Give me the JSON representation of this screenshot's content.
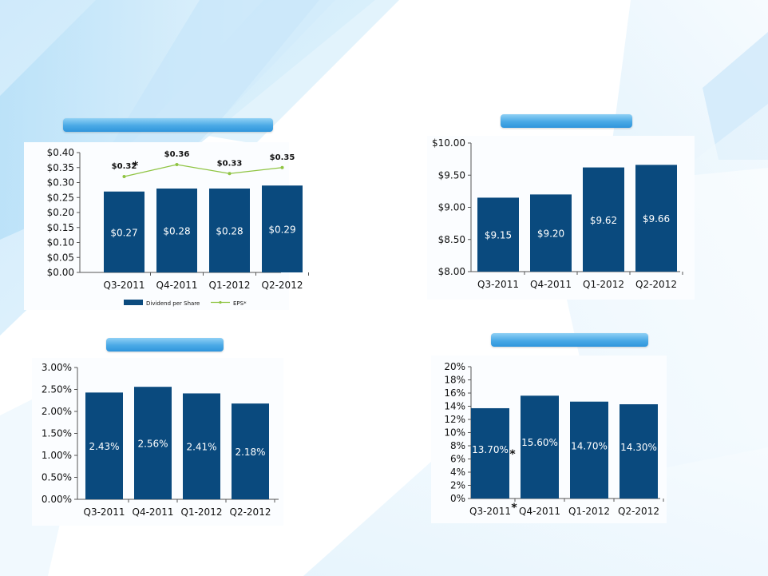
{
  "panels": [
    {
      "title": ""
    },
    {
      "title": ""
    },
    {
      "title": ""
    },
    {
      "title": ""
    }
  ],
  "chart_data": [
    {
      "type": "bar",
      "categories": [
        "Q3-2011",
        "Q4-2011",
        "Q1-2012",
        "Q2-2012"
      ],
      "ylim": [
        0,
        0.4
      ],
      "yticks": [
        "$0.00",
        "$0.05",
        "$0.10",
        "$0.15",
        "$0.20",
        "$0.25",
        "$0.30",
        "$0.35",
        "$0.40"
      ],
      "series": [
        {
          "name": "Dividend per Share",
          "kind": "bar",
          "color": "#0a4a7e",
          "values": [
            0.27,
            0.28,
            0.28,
            0.29
          ],
          "labels": [
            "$0.27",
            "$0.28",
            "$0.28",
            "$0.29"
          ]
        },
        {
          "name": "EPS*",
          "kind": "line",
          "color": "#8fc442",
          "values": [
            0.32,
            0.36,
            0.33,
            0.35
          ],
          "labels": [
            "$0.32",
            "$0.36",
            "$0.33",
            "$0.35"
          ]
        }
      ],
      "annotations": [
        {
          "text": "*",
          "near": "EPS Q3-2011 label"
        }
      ],
      "legend": "bottom",
      "grid": false
    },
    {
      "type": "bar",
      "categories": [
        "Q3-2011",
        "Q4-2011",
        "Q1-2012",
        "Q2-2012"
      ],
      "ylim": [
        8,
        10
      ],
      "yticks": [
        "$8.00",
        "$8.50",
        "$9.00",
        "$9.50",
        "$10.00"
      ],
      "series": [
        {
          "color": "#0a4a7e",
          "values": [
            9.15,
            9.2,
            9.62,
            9.66
          ],
          "labels": [
            "$9.15",
            "$9.20",
            "$9.62",
            "$9.66"
          ]
        }
      ],
      "grid": false
    },
    {
      "type": "bar",
      "categories": [
        "Q3-2011",
        "Q4-2011",
        "Q1-2012",
        "Q2-2012"
      ],
      "ylim": [
        0,
        3
      ],
      "yticks": [
        "0.00%",
        "0.50%",
        "1.00%",
        "1.50%",
        "2.00%",
        "2.50%",
        "3.00%"
      ],
      "series": [
        {
          "color": "#0a4a7e",
          "values": [
            2.43,
            2.56,
            2.41,
            2.18
          ],
          "labels": [
            "2.43%",
            "2.56%",
            "2.41%",
            "2.18%"
          ]
        }
      ],
      "grid": false
    },
    {
      "type": "bar",
      "categories": [
        "Q3-2011",
        "Q4-2011",
        "Q1-2012",
        "Q2-2012"
      ],
      "ylim": [
        0,
        20
      ],
      "yticks": [
        "0%",
        "2%",
        "4%",
        "6%",
        "8%",
        "10%",
        "12%",
        "14%",
        "16%",
        "18%",
        "20%"
      ],
      "series": [
        {
          "color": "#0a4a7e",
          "values": [
            13.7,
            15.6,
            14.7,
            14.3
          ],
          "labels": [
            "13.70%",
            "15.60%",
            "14.70%",
            "14.30%"
          ]
        }
      ],
      "annotations": [
        {
          "text": "*",
          "near": "Q3-2011 bar label"
        },
        {
          "text": "*",
          "near": "Q3-2011 category label"
        }
      ],
      "grid": false
    }
  ]
}
